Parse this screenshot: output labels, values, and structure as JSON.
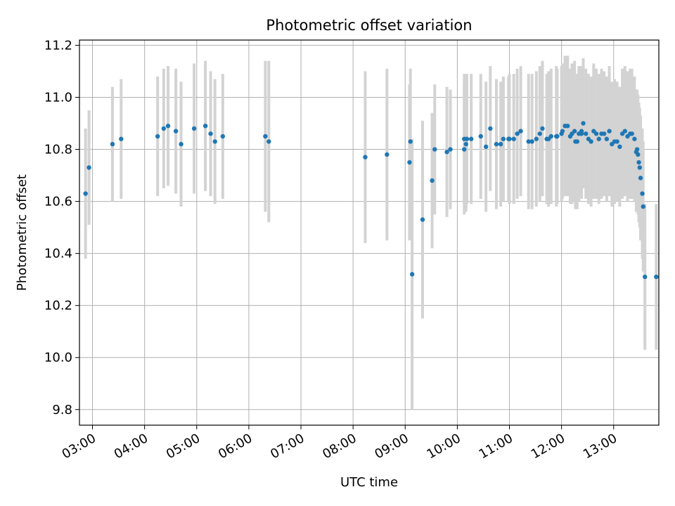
{
  "chart_data": {
    "type": "scatter",
    "title": "Photometric offset variation",
    "xlabel": "UTC time",
    "ylabel": "Photometric offset",
    "x_ticks": [
      "03:00",
      "04:00",
      "05:00",
      "06:00",
      "07:00",
      "08:00",
      "09:00",
      "10:00",
      "11:00",
      "12:00",
      "13:00"
    ],
    "y_ticks": [
      "9.8",
      "10.0",
      "10.2",
      "10.4",
      "10.6",
      "10.8",
      "11.0",
      "11.2"
    ],
    "xlim": [
      "02:45",
      "13:52"
    ],
    "ylim": [
      9.74,
      11.22
    ],
    "grid": true,
    "colors": {
      "points": "#1f77b4",
      "errorbars": "#d3d3d3",
      "grid": "#b0b0b0"
    },
    "series": [
      {
        "x": [
          "02:52",
          "02:56",
          "03:23",
          "03:33",
          "04:15",
          "04:22",
          "04:27",
          "04:36",
          "04:42",
          "04:57",
          "05:10",
          "05:30",
          "05:16",
          "05:21",
          "06:19",
          "06:23",
          "08:14",
          "08:39",
          "09:05",
          "09:06",
          "09:08",
          "09:20",
          "09:31",
          "09:34",
          "09:48",
          "09:52",
          "10:08",
          "10:08",
          "10:10",
          "10:11",
          "10:16",
          "10:27",
          "10:33",
          "10:38",
          "10:45",
          "10:50",
          "10:53",
          "10:59",
          "11:00",
          "11:05",
          "11:09",
          "11:13",
          "11:22",
          "11:26",
          "11:31",
          "11:35",
          "11:38",
          "11:43",
          "11:45",
          "11:48",
          "11:54",
          "11:55",
          "12:00",
          "12:01",
          "12:04",
          "12:07",
          "12:10",
          "12:12",
          "12:15",
          "12:16",
          "12:18",
          "12:20",
          "12:23",
          "12:23",
          "12:25",
          "12:28",
          "12:31",
          "12:34",
          "12:37",
          "12:40",
          "12:43",
          "12:46",
          "12:49",
          "12:52",
          "12:55",
          "12:58",
          "13:01",
          "13:04",
          "13:07",
          "13:10",
          "13:13",
          "13:16",
          "13:19",
          "13:21",
          "13:24",
          "13:26",
          "13:27",
          "13:28",
          "13:29",
          "13:30",
          "13:31",
          "13:33",
          "13:34",
          "13:36",
          "13:49"
        ],
        "y": [
          10.63,
          10.73,
          10.82,
          10.84,
          10.85,
          10.88,
          10.89,
          10.87,
          10.82,
          10.88,
          10.89,
          10.85,
          10.86,
          10.83,
          10.85,
          10.83,
          10.77,
          10.78,
          10.75,
          10.83,
          10.32,
          10.53,
          10.68,
          10.8,
          10.79,
          10.8,
          10.8,
          10.84,
          10.82,
          10.84,
          10.84,
          10.85,
          10.81,
          10.88,
          10.82,
          10.82,
          10.84,
          10.84,
          10.84,
          10.84,
          10.86,
          10.87,
          10.83,
          10.83,
          10.84,
          10.86,
          10.88,
          10.84,
          10.84,
          10.85,
          10.85,
          10.85,
          10.86,
          10.87,
          10.89,
          10.89,
          10.85,
          10.86,
          10.87,
          10.83,
          10.83,
          10.86,
          10.87,
          10.86,
          10.9,
          10.86,
          10.84,
          10.83,
          10.87,
          10.86,
          10.84,
          10.86,
          10.86,
          10.84,
          10.87,
          10.82,
          10.83,
          10.83,
          10.81,
          10.86,
          10.87,
          10.85,
          10.86,
          10.86,
          10.84,
          10.79,
          10.8,
          10.78,
          10.75,
          10.73,
          10.69,
          10.63,
          10.58,
          10.31,
          10.31
        ],
        "err": [
          0.25,
          0.22,
          0.22,
          0.23,
          0.23,
          0.23,
          0.23,
          0.24,
          0.24,
          0.25,
          0.25,
          0.24,
          0.24,
          0.24,
          0.29,
          0.31,
          0.33,
          0.33,
          0.3,
          0.28,
          0.52,
          0.38,
          0.26,
          0.25,
          0.25,
          0.23,
          0.25,
          0.25,
          0.26,
          0.25,
          0.25,
          0.24,
          0.25,
          0.24,
          0.25,
          0.24,
          0.24,
          0.24,
          0.25,
          0.25,
          0.25,
          0.25,
          0.26,
          0.26,
          0.26,
          0.26,
          0.26,
          0.25,
          0.26,
          0.26,
          0.27,
          0.26,
          0.26,
          0.26,
          0.27,
          0.27,
          0.26,
          0.27,
          0.27,
          0.26,
          0.26,
          0.26,
          0.25,
          0.25,
          0.25,
          0.25,
          0.25,
          0.25,
          0.26,
          0.25,
          0.25,
          0.25,
          0.24,
          0.24,
          0.25,
          0.24,
          0.24,
          0.23,
          0.23,
          0.25,
          0.25,
          0.25,
          0.25,
          0.25,
          0.24,
          0.23,
          0.23,
          0.23,
          0.23,
          0.23,
          0.24,
          0.25,
          0.25,
          0.28,
          0.28
        ]
      }
    ]
  }
}
